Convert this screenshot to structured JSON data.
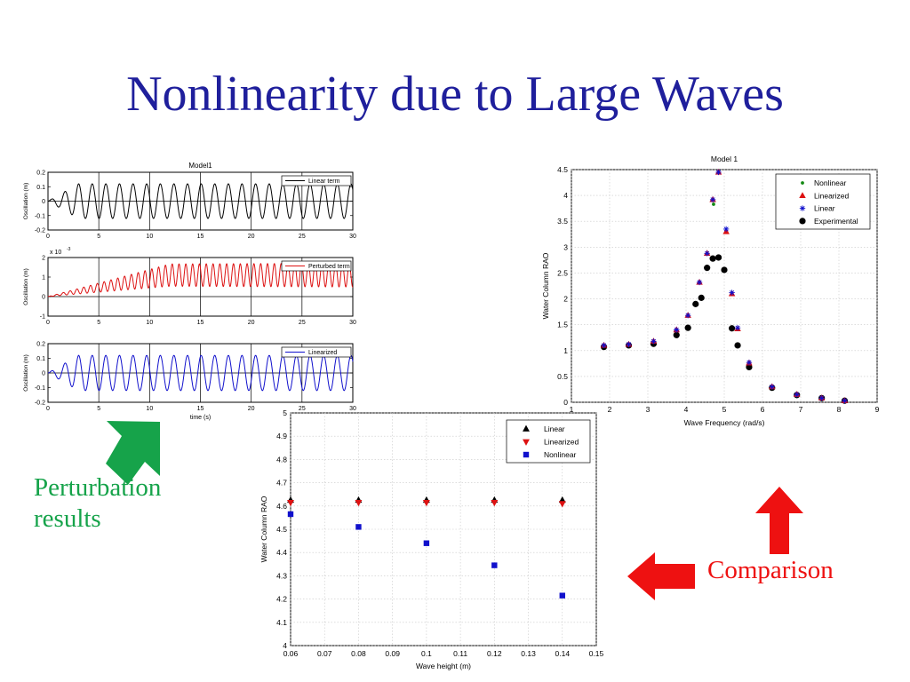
{
  "slide": {
    "title": "Nonlinearity due to Large Waves",
    "perturbation_label_line1": "Perturbation",
    "perturbation_label_line2": "results",
    "comparison_label": "Comparison"
  },
  "colors": {
    "title": "#1f1f9c",
    "perturbation_arrow": "#16a34a",
    "comparison_arrow": "#ee1111",
    "black": "#000000",
    "red": "#dd1111",
    "blue": "#1010cc",
    "green": "#118811"
  },
  "chart_data": [
    {
      "id": "time-series",
      "type": "line",
      "title": "Model1",
      "xlabel": "time (s)",
      "xlim": [
        0,
        30
      ],
      "xticks": [
        0,
        5,
        10,
        15,
        20,
        25,
        30
      ],
      "panels": [
        {
          "legend": "Linear term",
          "ylabel": "Oscillation (m)",
          "ylim": [
            -0.2,
            0.2
          ],
          "yticks": [
            -0.2,
            -0.1,
            0,
            0.1,
            0.2
          ],
          "ytick_labels": [
            "-0.2",
            "-0.1",
            "0",
            "0.1",
            "0.2"
          ],
          "exponent_label": "",
          "color": "#000000",
          "signal": {
            "amplitude": 0.12,
            "period": 1.34,
            "ramp": 3,
            "offset": 0,
            "amp_growth": 0
          }
        },
        {
          "legend": "Perturbed term",
          "ylabel": "Oscillation (m)",
          "ylim": [
            -1,
            2
          ],
          "yticks": [
            -1,
            0,
            1,
            2
          ],
          "ytick_labels": [
            "-1",
            "0",
            "1",
            "2"
          ],
          "exponent_label": "x 10",
          "exponent_power": "-3",
          "color": "#dd1111",
          "signal": {
            "amplitude": 0.55,
            "period": 0.67,
            "ramp": 12,
            "offset": 1.1,
            "amp_growth": 0.1
          }
        },
        {
          "legend": "Linearized",
          "ylabel": "Oscillation (m)",
          "ylim": [
            -0.2,
            0.2
          ],
          "yticks": [
            -0.2,
            -0.1,
            0,
            0.1,
            0.2
          ],
          "ytick_labels": [
            "-0.2",
            "-0.1",
            "0",
            "0.1",
            "0.2"
          ],
          "exponent_label": "",
          "color": "#1010cc",
          "signal": {
            "amplitude": 0.12,
            "period": 1.34,
            "ramp": 3,
            "offset": 0,
            "amp_growth": 0
          }
        }
      ]
    },
    {
      "id": "rao-frequency",
      "type": "scatter",
      "title": "Model 1",
      "xlabel": "Wave Frequency (rad/s)",
      "ylabel": "Water Column RAO",
      "xlim": [
        1,
        9
      ],
      "ylim": [
        0,
        4.5
      ],
      "xticks": [
        1,
        2,
        3,
        4,
        5,
        6,
        7,
        8,
        9
      ],
      "xtick_labels": [
        "1",
        "2",
        "3",
        "4",
        "5",
        "6",
        "7",
        "8",
        "9"
      ],
      "yticks": [
        0,
        0.5,
        1,
        1.5,
        2,
        2.5,
        3,
        3.5,
        4,
        4.5
      ],
      "ytick_labels": [
        "0",
        "0.5",
        "1",
        "1.5",
        "2",
        "2.5",
        "3",
        "3.5",
        "4",
        "4.5"
      ],
      "legend_position": "top-right",
      "series": [
        {
          "name": "Nonlinear",
          "marker": "dot-small",
          "color": "#118811",
          "x": [
            4.72
          ],
          "y": [
            3.83
          ]
        },
        {
          "name": "Linearized",
          "marker": "triangle-up",
          "color": "#dd1111",
          "x": [
            1.85,
            2.5,
            3.15,
            3.75,
            4.05,
            4.35,
            4.55,
            4.7,
            4.85,
            5.05,
            5.2,
            5.35,
            5.65,
            6.25,
            6.9,
            7.55,
            8.15
          ],
          "y": [
            1.1,
            1.12,
            1.18,
            1.4,
            1.68,
            2.32,
            2.88,
            3.92,
            4.45,
            3.3,
            2.1,
            1.42,
            0.76,
            0.3,
            0.15,
            0.08,
            0.03
          ]
        },
        {
          "name": "Linear",
          "marker": "star",
          "color": "#1010cc",
          "x": [
            1.85,
            2.5,
            3.15,
            3.75,
            4.05,
            4.35,
            4.55,
            4.7,
            4.85,
            5.05,
            5.2,
            5.35,
            5.65,
            6.25,
            6.9,
            7.55,
            8.15
          ],
          "y": [
            1.1,
            1.12,
            1.18,
            1.4,
            1.68,
            2.32,
            2.88,
            3.92,
            4.45,
            3.35,
            2.12,
            1.44,
            0.77,
            0.3,
            0.15,
            0.08,
            0.03
          ]
        },
        {
          "name": "Experimental",
          "marker": "circle",
          "color": "#000000",
          "x": [
            1.85,
            2.5,
            3.15,
            3.75,
            4.05,
            4.25,
            4.4,
            4.55,
            4.7,
            4.85,
            5.0,
            5.2,
            5.35,
            5.65,
            6.25,
            6.9,
            7.55,
            8.15
          ],
          "y": [
            1.07,
            1.1,
            1.13,
            1.3,
            1.44,
            1.9,
            2.02,
            2.6,
            2.78,
            2.8,
            2.56,
            1.43,
            1.1,
            0.68,
            0.28,
            0.14,
            0.08,
            0.03
          ]
        }
      ]
    },
    {
      "id": "rao-wave-height",
      "type": "scatter",
      "title": "",
      "xlabel": "Wave height (m)",
      "ylabel": "Water Column RAO",
      "xlim": [
        0.06,
        0.15
      ],
      "ylim": [
        4,
        5
      ],
      "xticks": [
        0.06,
        0.07,
        0.08,
        0.09,
        0.1,
        0.11,
        0.12,
        0.13,
        0.14,
        0.15
      ],
      "xtick_labels": [
        "0.06",
        "0.07",
        "0.08",
        "0.09",
        "0.1",
        "0.11",
        "0.12",
        "0.13",
        "0.14",
        "0.15"
      ],
      "yticks": [
        4,
        4.1,
        4.2,
        4.3,
        4.4,
        4.5,
        4.6,
        4.7,
        4.8,
        4.9,
        5
      ],
      "ytick_labels": [
        "4",
        "4.1",
        "4.2",
        "4.3",
        "4.4",
        "4.5",
        "4.6",
        "4.7",
        "4.8",
        "4.9",
        "5"
      ],
      "legend_position": "top-right",
      "series": [
        {
          "name": "Linear",
          "marker": "triangle-up",
          "color": "#000000",
          "x": [
            0.06,
            0.08,
            0.1,
            0.12,
            0.14
          ],
          "y": [
            4.625,
            4.625,
            4.625,
            4.625,
            4.625
          ]
        },
        {
          "name": "Linearized",
          "marker": "triangle-down",
          "color": "#dd1111",
          "x": [
            0.06,
            0.08,
            0.1,
            0.12,
            0.14
          ],
          "y": [
            4.615,
            4.615,
            4.615,
            4.615,
            4.61
          ]
        },
        {
          "name": "Nonlinear",
          "marker": "square",
          "color": "#1010cc",
          "x": [
            0.06,
            0.08,
            0.1,
            0.12,
            0.14
          ],
          "y": [
            4.565,
            4.51,
            4.44,
            4.345,
            4.215
          ]
        }
      ]
    }
  ]
}
